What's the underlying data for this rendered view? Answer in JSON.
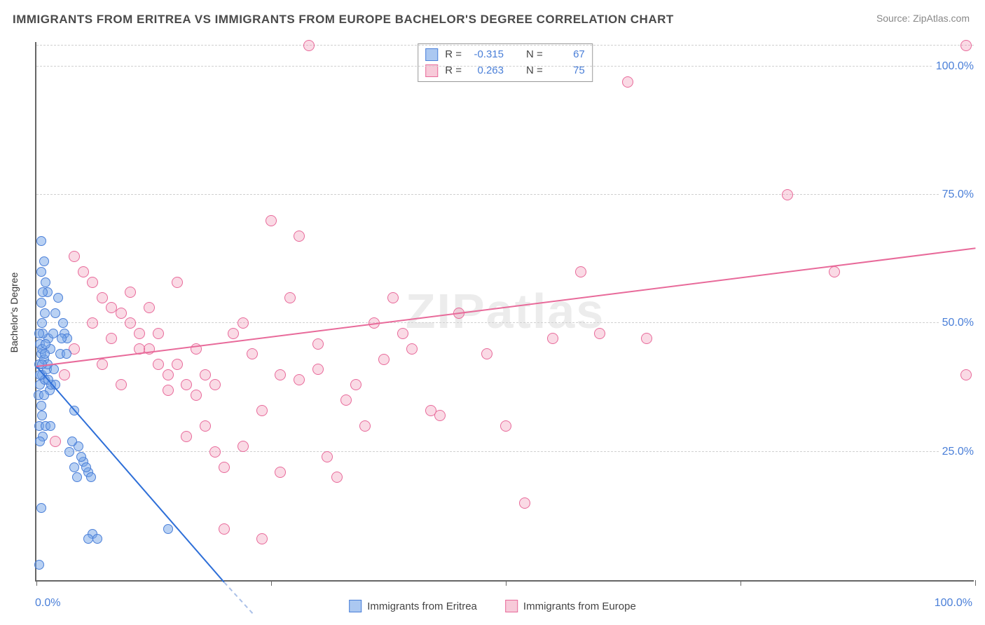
{
  "title": "IMMIGRANTS FROM ERITREA VS IMMIGRANTS FROM EUROPE BACHELOR'S DEGREE CORRELATION CHART",
  "source_label": "Source: ",
  "source_value": "ZipAtlas.com",
  "watermark": "ZIPatlas",
  "ylabel": "Bachelor's Degree",
  "chart": {
    "type": "scatter",
    "xlim": [
      0,
      100
    ],
    "ylim": [
      0,
      105
    ],
    "yticks": [
      25,
      50,
      75,
      100
    ],
    "ytick_labels": [
      "25.0%",
      "50.0%",
      "75.0%",
      "100.0%"
    ],
    "xtick_positions": [
      0,
      25,
      50,
      75,
      100
    ],
    "xtick_labels": {
      "left": "0.0%",
      "right": "100.0%"
    },
    "background_color": "#ffffff",
    "grid_color": "#d0d0d0",
    "axis_color": "#666666"
  },
  "series": {
    "blue": {
      "label": "Immigrants from Eritrea",
      "color_fill": "rgba(115,164,232,0.5)",
      "color_stroke": "#4a7fd8",
      "R": "-0.315",
      "N": "67",
      "trend": {
        "x1": 0,
        "y1": 42,
        "x2": 20,
        "y2": 0,
        "dash_extend_to_x": 23
      },
      "points": [
        [
          0.3,
          3
        ],
        [
          0.5,
          66
        ],
        [
          0.8,
          62
        ],
        [
          1.0,
          58
        ],
        [
          1.2,
          56
        ],
        [
          0.6,
          50
        ],
        [
          0.4,
          46
        ],
        [
          0.5,
          44
        ],
        [
          0.3,
          42
        ],
        [
          0.6,
          40
        ],
        [
          0.4,
          38
        ],
        [
          0.2,
          36
        ],
        [
          0.5,
          34
        ],
        [
          0.3,
          30
        ],
        [
          0.7,
          28
        ],
        [
          0.6,
          45
        ],
        [
          0.8,
          43
        ],
        [
          1.1,
          41
        ],
        [
          0.9,
          39
        ],
        [
          0.4,
          27
        ],
        [
          0.5,
          14
        ],
        [
          1.3,
          47
        ],
        [
          1.5,
          45
        ],
        [
          2.0,
          52
        ],
        [
          2.3,
          55
        ],
        [
          2.8,
          50
        ],
        [
          3.0,
          48
        ],
        [
          3.3,
          47
        ],
        [
          3.5,
          25
        ],
        [
          4.0,
          22
        ],
        [
          4.3,
          20
        ],
        [
          4.5,
          26
        ],
        [
          5.0,
          23
        ],
        [
          5.5,
          21
        ],
        [
          6.0,
          9
        ],
        [
          6.5,
          8
        ],
        [
          3.8,
          27
        ],
        [
          2.5,
          44
        ],
        [
          1.8,
          48
        ],
        [
          1.0,
          30
        ],
        [
          0.7,
          48
        ],
        [
          0.9,
          52
        ],
        [
          1.4,
          37
        ],
        [
          1.6,
          38
        ],
        [
          0.5,
          60
        ],
        [
          4.8,
          24
        ],
        [
          5.3,
          22
        ],
        [
          5.8,
          20
        ],
        [
          3.2,
          44
        ],
        [
          2.7,
          47
        ],
        [
          1.9,
          41
        ],
        [
          1.2,
          42
        ],
        [
          0.8,
          36
        ],
        [
          0.6,
          32
        ],
        [
          0.4,
          40
        ],
        [
          0.3,
          48
        ],
        [
          0.5,
          54
        ],
        [
          0.7,
          56
        ],
        [
          1.0,
          46
        ],
        [
          1.3,
          39
        ],
        [
          14,
          10
        ],
        [
          2.0,
          38
        ],
        [
          4.0,
          33
        ],
        [
          1.5,
          30
        ],
        [
          0.9,
          44
        ],
        [
          0.6,
          42
        ],
        [
          5.5,
          8
        ]
      ]
    },
    "pink": {
      "label": "Immigrants from Europe",
      "color_fill": "rgba(240,150,180,0.35)",
      "color_stroke": "#e86a9a",
      "R": "0.263",
      "N": "75",
      "trend": {
        "x1": 0,
        "y1": 42,
        "x2": 100,
        "y2": 65
      },
      "points": [
        [
          2,
          27
        ],
        [
          3,
          40
        ],
        [
          4,
          45
        ],
        [
          5,
          60
        ],
        [
          6,
          50
        ],
        [
          7,
          55
        ],
        [
          8,
          53
        ],
        [
          9,
          52
        ],
        [
          10,
          56
        ],
        [
          11,
          48
        ],
        [
          12,
          45
        ],
        [
          13,
          42
        ],
        [
          14,
          40
        ],
        [
          15,
          58
        ],
        [
          16,
          38
        ],
        [
          17,
          36
        ],
        [
          18,
          30
        ],
        [
          19,
          25
        ],
        [
          20,
          22
        ],
        [
          21,
          48
        ],
        [
          22,
          50
        ],
        [
          23,
          44
        ],
        [
          24,
          33
        ],
        [
          25,
          70
        ],
        [
          26,
          40
        ],
        [
          27,
          55
        ],
        [
          28,
          67
        ],
        [
          29,
          104
        ],
        [
          30,
          46
        ],
        [
          31,
          24
        ],
        [
          32,
          20
        ],
        [
          33,
          35
        ],
        [
          34,
          38
        ],
        [
          35,
          30
        ],
        [
          36,
          50
        ],
        [
          37,
          43
        ],
        [
          38,
          55
        ],
        [
          39,
          48
        ],
        [
          40,
          45
        ],
        [
          63,
          97
        ],
        [
          42,
          33
        ],
        [
          43,
          32
        ],
        [
          45,
          52
        ],
        [
          48,
          44
        ],
        [
          50,
          30
        ],
        [
          52,
          15
        ],
        [
          55,
          47
        ],
        [
          58,
          60
        ],
        [
          60,
          48
        ],
        [
          85,
          60
        ],
        [
          65,
          47
        ],
        [
          80,
          75
        ],
        [
          99,
          104
        ],
        [
          99,
          40
        ],
        [
          4,
          63
        ],
        [
          6,
          58
        ],
        [
          8,
          47
        ],
        [
          10,
          50
        ],
        [
          12,
          53
        ],
        [
          14,
          37
        ],
        [
          16,
          28
        ],
        [
          18,
          40
        ],
        [
          20,
          10
        ],
        [
          22,
          26
        ],
        [
          24,
          8
        ],
        [
          26,
          21
        ],
        [
          28,
          39
        ],
        [
          30,
          41
        ],
        [
          7,
          42
        ],
        [
          9,
          38
        ],
        [
          11,
          45
        ],
        [
          13,
          48
        ],
        [
          15,
          42
        ],
        [
          17,
          45
        ],
        [
          19,
          38
        ]
      ]
    }
  },
  "stats_labels": {
    "R": "R =",
    "N": "N ="
  }
}
